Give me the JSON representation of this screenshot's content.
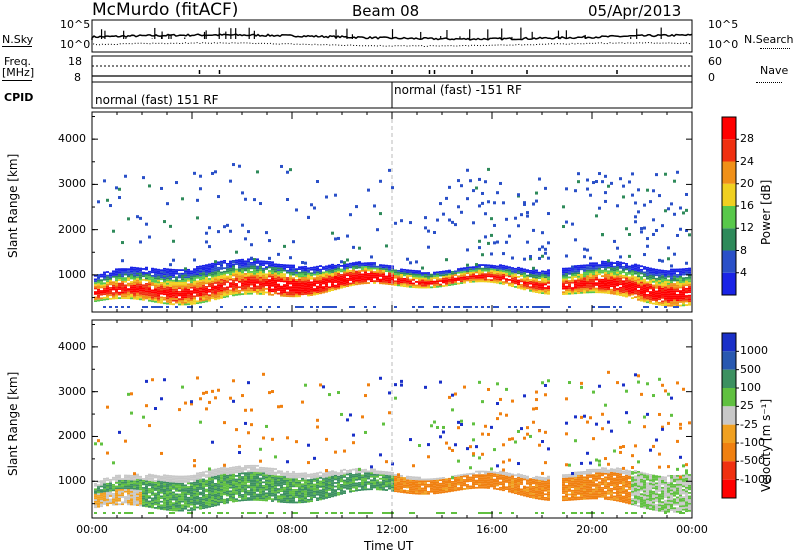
{
  "header": {
    "station": "McMurdo (fitACF)",
    "beam": "Beam 08",
    "date": "05/Apr/2013"
  },
  "status_panels": {
    "nsky_label": "N.Sky",
    "nsearch_label": "N.Search",
    "freq_label": "Freq.",
    "freq_unit": "[MHz]",
    "nave_label": "Nave",
    "cpid_label": "CPID",
    "noise_ticks_left": [
      "10^5",
      "10^0"
    ],
    "noise_ticks_right": [
      "10^5",
      "10^0"
    ],
    "freq_ticks": [
      "18",
      "8"
    ],
    "nave_ticks": [
      "60",
      "0"
    ],
    "cpid_segments": [
      {
        "label": "normal (fast) 151 RF",
        "start_hour": 0
      },
      {
        "label": "normal (fast) -151 RF",
        "start_hour": 12
      }
    ]
  },
  "chart_data": [
    {
      "type": "heatmap",
      "quantity": "Power",
      "ylabel": "Slant Range [km]",
      "xlabel": "",
      "x_range_hours": [
        0,
        24
      ],
      "ylim": [
        180,
        4600
      ],
      "y_ticks": [
        "1000",
        "2000",
        "3000",
        "4000"
      ],
      "colorbar_label": "Power [dB]",
      "colorbar_ticks": [
        "4",
        "8",
        "12",
        "16",
        "20",
        "24",
        "28"
      ],
      "colorbar_colors": [
        "#1a24e6",
        "#2a50c8",
        "#2e8a5a",
        "#58c84a",
        "#f0d020",
        "#f09018",
        "#f03010",
        "#ff0000"
      ]
    },
    {
      "type": "heatmap",
      "quantity": "Velocity",
      "ylabel": "Slant Range [km]",
      "xlabel": "Time UT",
      "x_range_hours": [
        0,
        24
      ],
      "x_ticks": [
        "00:00",
        "04:00",
        "08:00",
        "12:00",
        "16:00",
        "20:00",
        "00:00"
      ],
      "ylim": [
        180,
        4600
      ],
      "y_ticks": [
        "1000",
        "2000",
        "3000",
        "4000"
      ],
      "colorbar_label": "Velocity [m s⁻¹]",
      "colorbar_ticks": [
        "1000",
        "500",
        "100",
        "25",
        "-25",
        "-100",
        "-500",
        "-1000"
      ],
      "colorbar_colors": [
        "#1a30c8",
        "#2858b0",
        "#3c9060",
        "#60c040",
        "#c8c8c8",
        "#f0a020",
        "#f08010",
        "#f03010",
        "#ff0000"
      ]
    }
  ]
}
